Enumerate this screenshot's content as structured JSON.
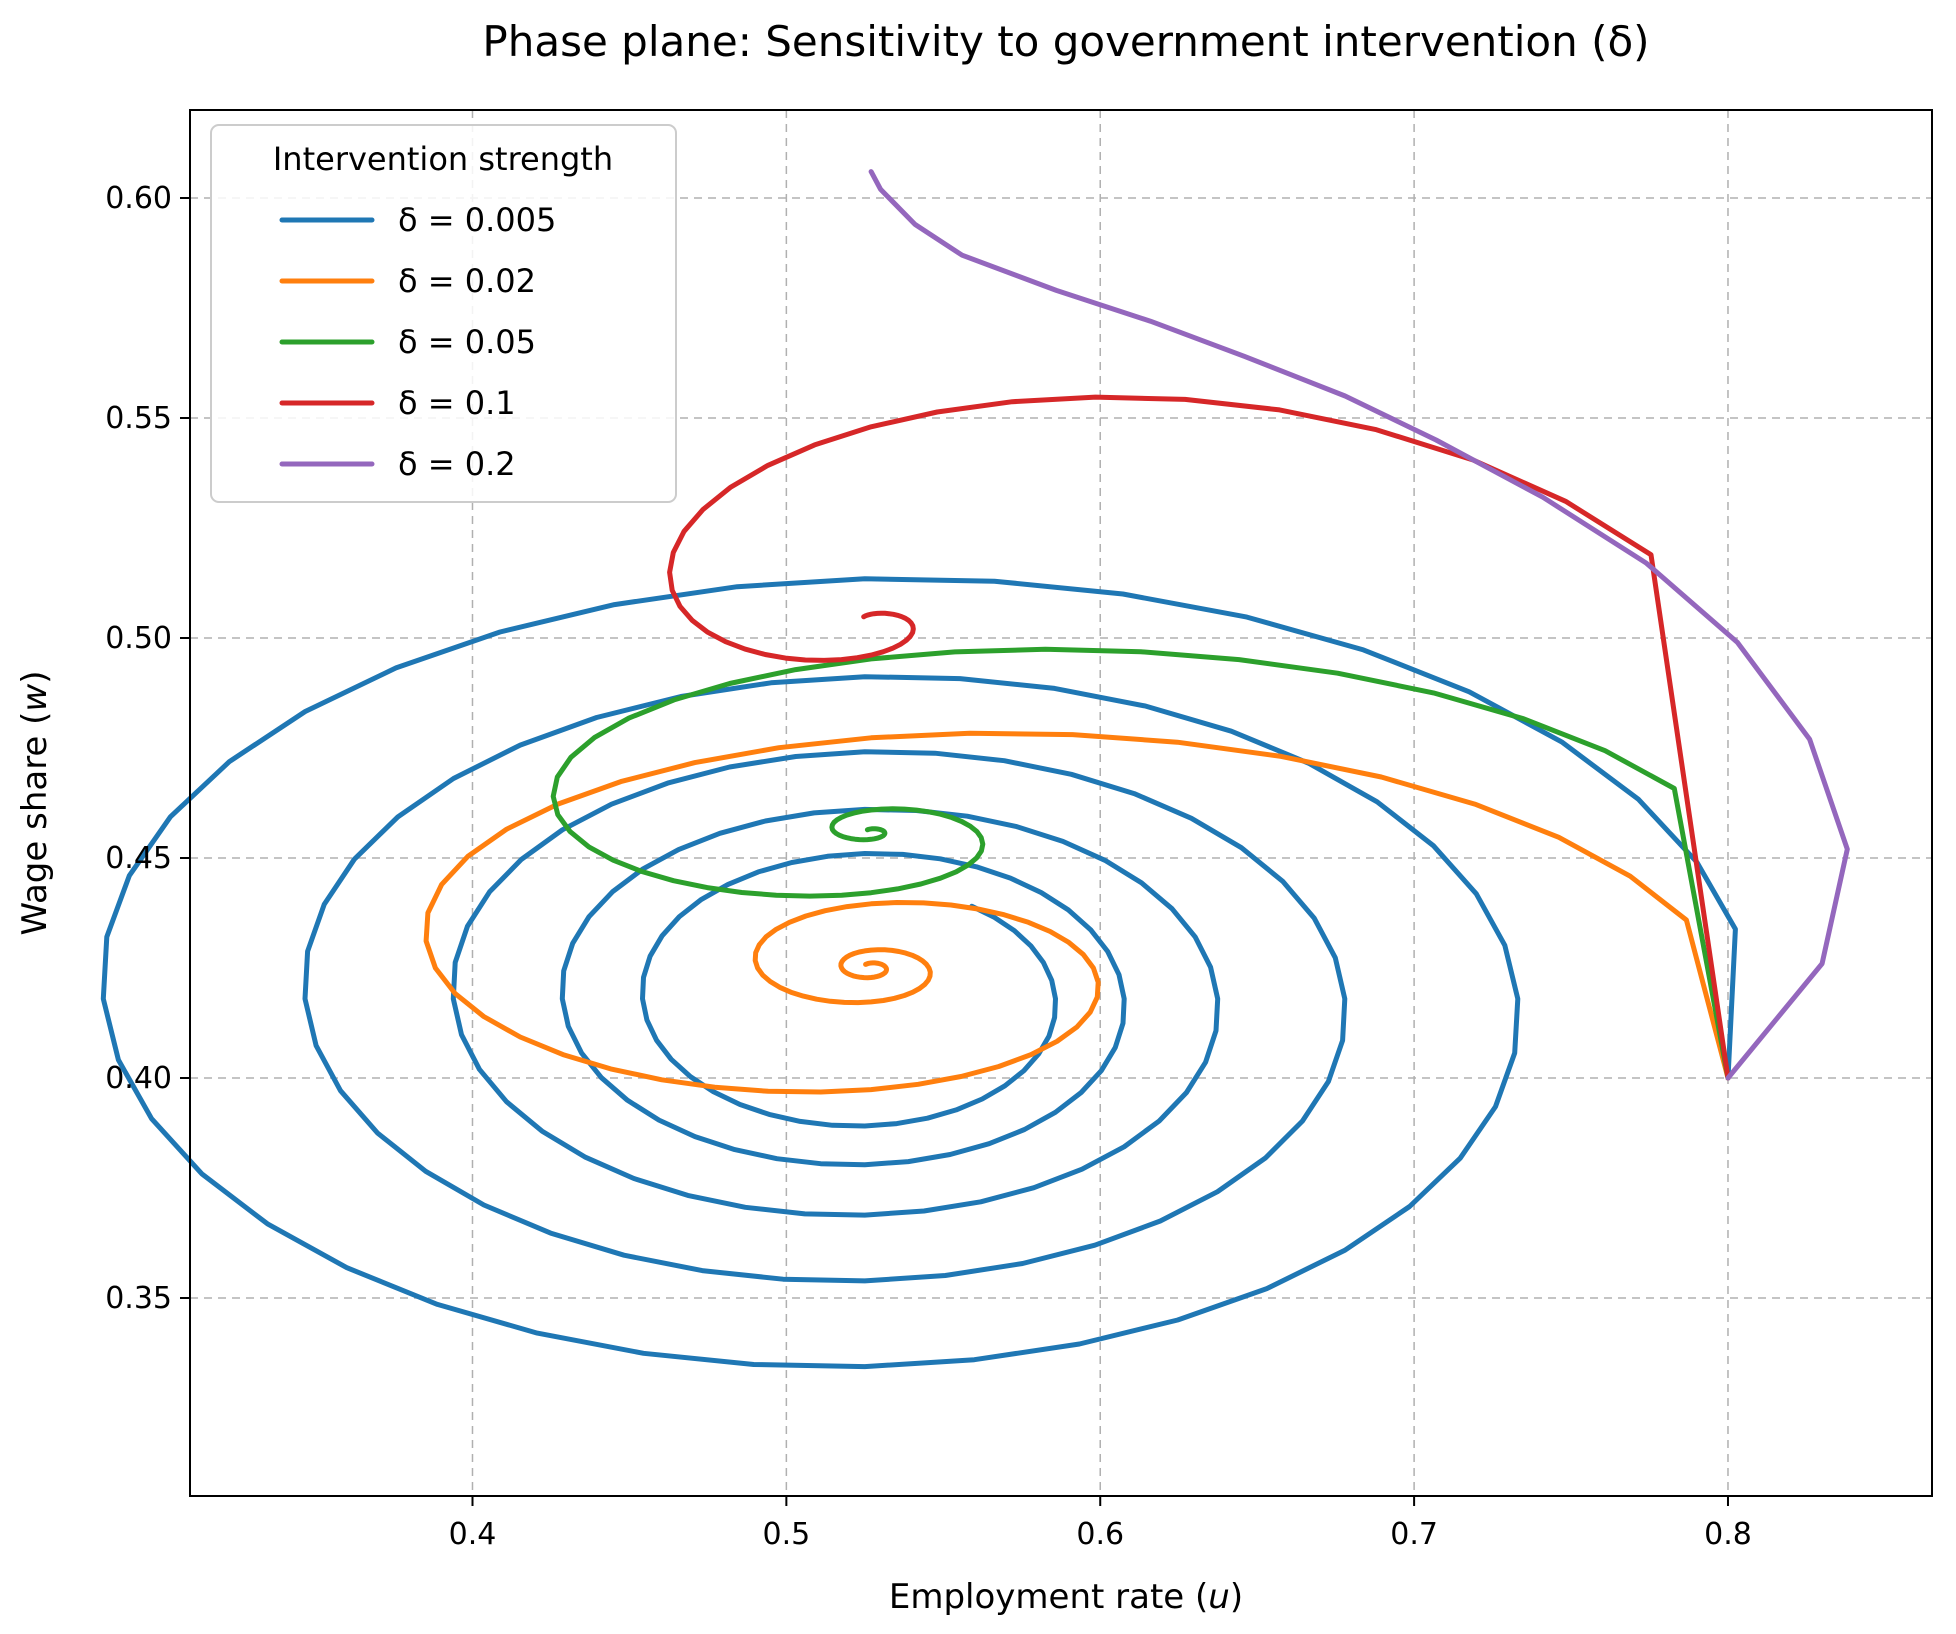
{
  "chart_data": {
    "type": "line",
    "title": "Phase plane: Sensitivity to government intervention (δ)",
    "xlabel_text": "Employment rate (",
    "xlabel_var": "u",
    "xlabel_close": ")",
    "ylabel_text": "Wage share (",
    "ylabel_var": "w",
    "ylabel_close": ")",
    "xlim": [
      0.31,
      0.865
    ],
    "ylim": [
      0.305,
      0.62
    ],
    "xticks": [
      0.4,
      0.5,
      0.6,
      0.7,
      0.8
    ],
    "xtick_labels": [
      "0.4",
      "0.5",
      "0.6",
      "0.7",
      "0.8"
    ],
    "yticks": [
      0.35,
      0.4,
      0.45,
      0.5,
      0.55,
      0.6
    ],
    "ytick_labels": [
      "0.35",
      "0.40",
      "0.45",
      "0.50",
      "0.55",
      "0.60"
    ],
    "grid": true,
    "legend": {
      "title": "Intervention strength",
      "placement": "top-left"
    },
    "series": [
      {
        "name": "δ = 0.005",
        "color": "#1f77b4",
        "spiral": {
          "cx": 0.525,
          "cy": 0.418,
          "a_start": 0.283,
          "a_end": 0.058,
          "b_start": 0.102,
          "b_end": 0.026,
          "turns": 5.15,
          "phase_start": 0.0,
          "dir": 1
        },
        "points": []
      },
      {
        "name": "δ = 0.02",
        "color": "#ff7f0e",
        "spiral": {
          "cx": 0.527,
          "cy": 0.425,
          "a_start": 0.272,
          "a_end": 0.003,
          "b_start": 0.072,
          "b_end": 0.001,
          "turns": 3.35,
          "phase_start": 0.0,
          "dir": 1
        },
        "points": []
      },
      {
        "name": "δ = 0.05",
        "color": "#2ca02c",
        "spiral": {
          "cx": 0.527,
          "cy": 0.456,
          "a_start": 0.273,
          "a_end": 0.002,
          "b_start": 0.066,
          "b_end": 0.0005,
          "turns": 2.35,
          "phase_start": 0.0,
          "dir": 1
        },
        "points": []
      },
      {
        "name": "δ = 0.1",
        "color": "#d62728",
        "spiral": {
          "cx": 0.527,
          "cy": 0.504,
          "a_start": 0.272,
          "a_end": 0.004,
          "b_start": 0.104,
          "b_end": 0.001,
          "turns": 1.35,
          "phase_start": 0.0,
          "dir": 1
        },
        "points": []
      },
      {
        "name": "δ = 0.2",
        "color": "#9467bd",
        "points": [
          [
            0.8,
            0.4
          ],
          [
            0.83,
            0.426
          ],
          [
            0.838,
            0.452
          ],
          [
            0.826,
            0.477
          ],
          [
            0.803,
            0.499
          ],
          [
            0.774,
            0.517
          ],
          [
            0.741,
            0.532
          ],
          [
            0.707,
            0.545
          ],
          [
            0.678,
            0.555
          ],
          [
            0.646,
            0.564
          ],
          [
            0.616,
            0.572
          ],
          [
            0.586,
            0.579
          ],
          [
            0.556,
            0.587
          ],
          [
            0.541,
            0.594
          ],
          [
            0.53,
            0.602
          ],
          [
            0.527,
            0.606
          ]
        ]
      }
    ]
  }
}
